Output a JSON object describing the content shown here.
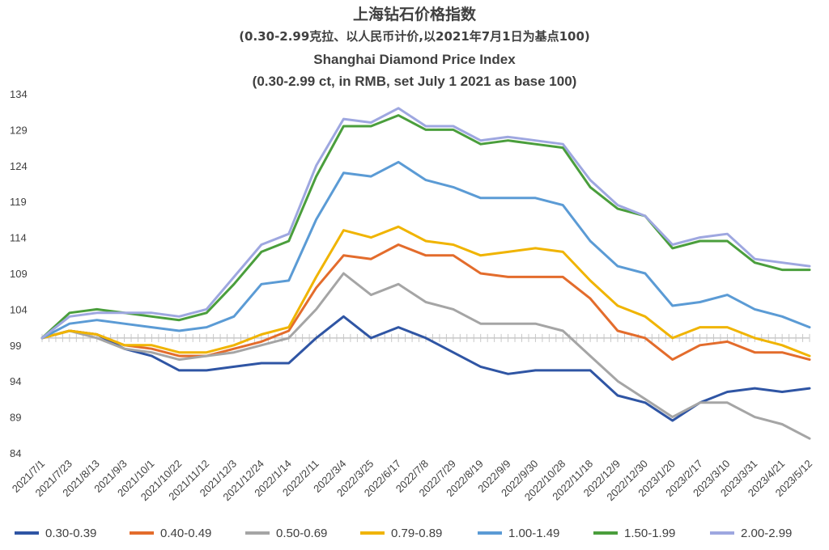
{
  "chart_data": {
    "type": "line",
    "title_zh": "上海钻石价格指数",
    "subtitle_zh": "(0.30-2.99克拉、以人民币计价,以2021年7月1日为基点100)",
    "title_en": "Shanghai Diamond Price Index",
    "subtitle_en": "(0.30-2.99 ct, in RMB, set July 1 2021 as base 100)",
    "ylim": [
      84,
      134
    ],
    "yticks": [
      "134",
      "129",
      "124",
      "119",
      "114",
      "109",
      "104",
      "99",
      "94",
      "89",
      "84"
    ],
    "x_tick_labels": [
      "2021/7/1",
      "2021/7/23",
      "2021/8/13",
      "2021/9/3",
      "2021/10/1",
      "2021/10/22",
      "2021/11/12",
      "2021/12/3",
      "2021/12/24",
      "2022/1/14",
      "2022/2/11",
      "2022/3/4",
      "2022/3/25",
      "2022/6/17",
      "2022/7/8",
      "2022/7/29",
      "2022/8/19",
      "2022/9/9",
      "2022/9/30",
      "2022/10/28",
      "2022/11/18",
      "2022/12/9",
      "2022/12/30",
      "2023/1/20",
      "2023/2/17",
      "2023/3/10",
      "2023/3/31",
      "2023/4/21",
      "2023/5/12"
    ],
    "x_points": 29,
    "series": [
      {
        "name": "0.30-0.39",
        "color": "#2f55a4",
        "values": [
          100,
          101,
          100.5,
          98.5,
          97.5,
          95.5,
          95.5,
          96,
          96.5,
          96.5,
          100,
          103,
          100,
          101.5,
          100,
          98,
          96,
          95,
          95.5,
          95.5,
          95.5,
          92,
          91,
          88.5,
          91,
          92.5,
          93,
          92.5,
          93
        ]
      },
      {
        "name": "0.40-0.49",
        "color": "#e36c2c",
        "values": [
          100,
          101,
          100.5,
          99,
          98.5,
          97.5,
          97.5,
          98.5,
          99.5,
          101,
          107,
          111.5,
          111,
          113,
          111.5,
          111.5,
          109,
          108.5,
          108.5,
          108.5,
          105.5,
          101,
          100,
          97,
          99,
          99.5,
          98,
          98,
          97
        ]
      },
      {
        "name": "0.50-0.69",
        "color": "#a5a5a5",
        "values": [
          100,
          101,
          100,
          98.5,
          98,
          97,
          97.5,
          98,
          99,
          100,
          104,
          109,
          106,
          107.5,
          105,
          104,
          102,
          102,
          102,
          101,
          97.5,
          94,
          91.5,
          89,
          91,
          91,
          89,
          88,
          86
        ]
      },
      {
        "name": "0.79-0.89",
        "color": "#f0b400",
        "values": [
          100,
          101,
          100.5,
          99,
          99,
          98,
          98,
          99,
          100.5,
          101.5,
          108.5,
          115,
          114,
          115.5,
          113.5,
          113,
          111.5,
          112,
          112.5,
          112,
          108,
          104.5,
          103,
          100,
          101.5,
          101.5,
          100,
          99,
          97.5
        ]
      },
      {
        "name": "1.00-1.49",
        "color": "#5b9bd5",
        "values": [
          100,
          102,
          102.5,
          102,
          101.5,
          101,
          101.5,
          103,
          107.5,
          108,
          116.5,
          123,
          122.5,
          124.5,
          122,
          121,
          119.5,
          119.5,
          119.5,
          118.5,
          113.5,
          110,
          109,
          104.5,
          105,
          106,
          104,
          103,
          101.5
        ]
      },
      {
        "name": "1.50-1.99",
        "color": "#4a9e3c",
        "values": [
          100,
          103.5,
          104,
          103.5,
          103,
          102.5,
          103.5,
          107.5,
          112,
          113.5,
          122.5,
          129.5,
          129.5,
          131,
          129,
          129,
          127,
          127.5,
          127,
          126.5,
          121,
          118,
          117,
          112.5,
          113.5,
          113.5,
          110.5,
          109.5,
          109.5
        ]
      },
      {
        "name": "2.00-2.99",
        "color": "#9ea7e0",
        "values": [
          100,
          103,
          103.5,
          103.5,
          103.5,
          103,
          104,
          108.5,
          113,
          114.5,
          124,
          130.5,
          130,
          132,
          129.5,
          129.5,
          127.5,
          128,
          127.5,
          127,
          122,
          118.5,
          117,
          113,
          114,
          114.5,
          111,
          110.5,
          110
        ]
      }
    ]
  }
}
